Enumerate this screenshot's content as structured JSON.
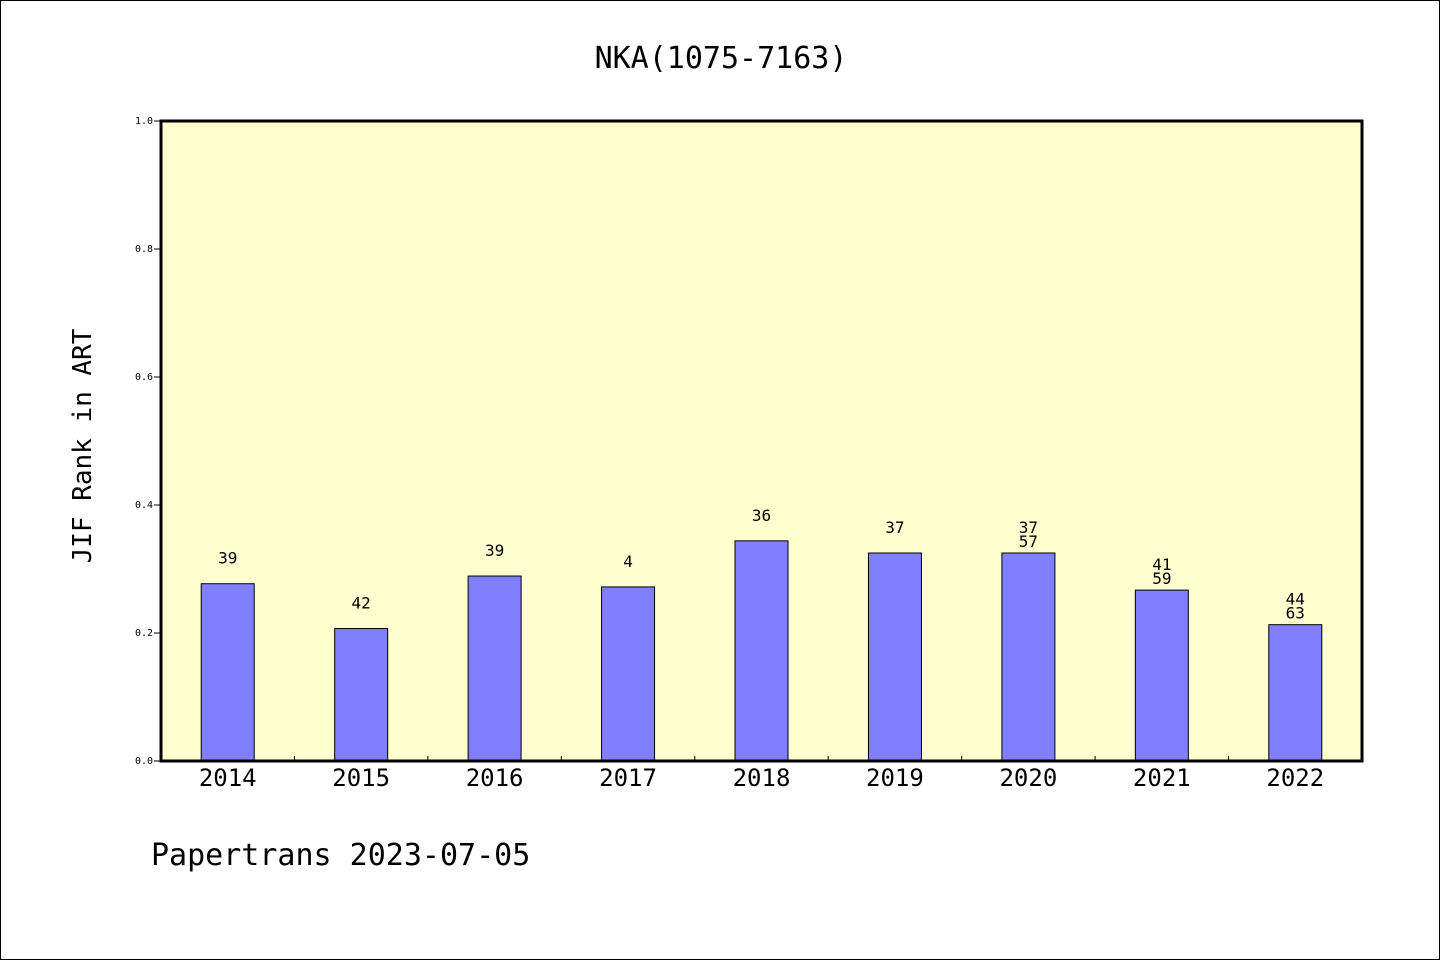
{
  "chart_data": {
    "type": "bar",
    "title": "NKA(1075-7163)",
    "xlabel": "",
    "ylabel": "JIF Rank in ART",
    "ylim": [
      0,
      1.0
    ],
    "yticks": [
      "0.0",
      "0.2",
      "0.4",
      "0.6",
      "0.8",
      "1.0"
    ],
    "categories": [
      "2014",
      "2015",
      "2016",
      "2017",
      "2018",
      "2019",
      "2020",
      "2021",
      "2022"
    ],
    "values": [
      0.277,
      0.207,
      0.289,
      0.272,
      0.344,
      0.325,
      0.325,
      0.267,
      0.213
    ],
    "labels": [
      [
        "39"
      ],
      [
        "42"
      ],
      [
        "39"
      ],
      [
        "4"
      ],
      [
        "36"
      ],
      [
        "37"
      ],
      [
        "37",
        "57"
      ],
      [
        "41",
        "59"
      ],
      [
        "44",
        "63"
      ]
    ],
    "grid": false,
    "plot_background": "#ffffd0",
    "bar_color": "#8080ff"
  },
  "footer": "Papertrans 2023-07-05"
}
